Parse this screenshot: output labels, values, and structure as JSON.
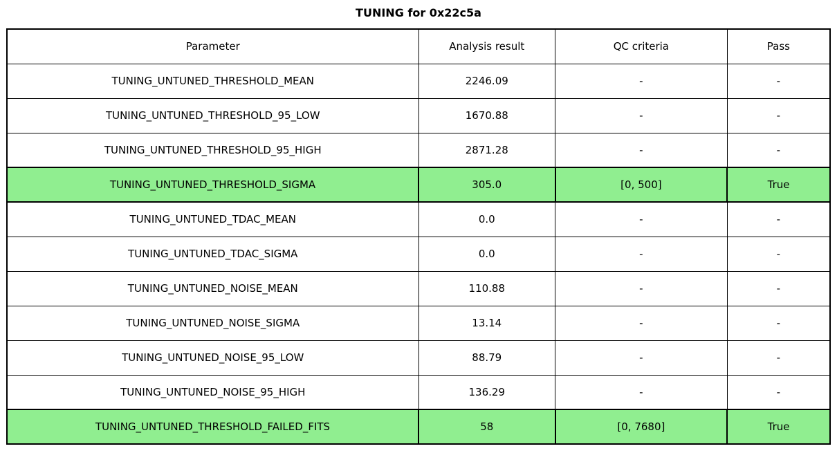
{
  "colors": {
    "highlight_green": "#90ee90",
    "border": "#000000",
    "text": "#000000",
    "background": "#ffffff"
  },
  "chart_data": {
    "type": "table",
    "title": "TUNING for 0x22c5a",
    "columns": [
      "Parameter",
      "Analysis result",
      "QC criteria",
      "Pass"
    ],
    "rows": [
      {
        "parameter": "TUNING_UNTUNED_THRESHOLD_MEAN",
        "analysis_result": "2246.09",
        "qc_criteria": "-",
        "pass": "-",
        "highlight": false
      },
      {
        "parameter": "TUNING_UNTUNED_THRESHOLD_95_LOW",
        "analysis_result": "1670.88",
        "qc_criteria": "-",
        "pass": "-",
        "highlight": false
      },
      {
        "parameter": "TUNING_UNTUNED_THRESHOLD_95_HIGH",
        "analysis_result": "2871.28",
        "qc_criteria": "-",
        "pass": "-",
        "highlight": false
      },
      {
        "parameter": "TUNING_UNTUNED_THRESHOLD_SIGMA",
        "analysis_result": "305.0",
        "qc_criteria": "[0, 500]",
        "pass": "True",
        "highlight": true
      },
      {
        "parameter": "TUNING_UNTUNED_TDAC_MEAN",
        "analysis_result": "0.0",
        "qc_criteria": "-",
        "pass": "-",
        "highlight": false
      },
      {
        "parameter": "TUNING_UNTUNED_TDAC_SIGMA",
        "analysis_result": "0.0",
        "qc_criteria": "-",
        "pass": "-",
        "highlight": false
      },
      {
        "parameter": "TUNING_UNTUNED_NOISE_MEAN",
        "analysis_result": "110.88",
        "qc_criteria": "-",
        "pass": "-",
        "highlight": false
      },
      {
        "parameter": "TUNING_UNTUNED_NOISE_SIGMA",
        "analysis_result": "13.14",
        "qc_criteria": "-",
        "pass": "-",
        "highlight": false
      },
      {
        "parameter": "TUNING_UNTUNED_NOISE_95_LOW",
        "analysis_result": "88.79",
        "qc_criteria": "-",
        "pass": "-",
        "highlight": false
      },
      {
        "parameter": "TUNING_UNTUNED_NOISE_95_HIGH",
        "analysis_result": "136.29",
        "qc_criteria": "-",
        "pass": "-",
        "highlight": false
      },
      {
        "parameter": "TUNING_UNTUNED_THRESHOLD_FAILED_FITS",
        "analysis_result": "58",
        "qc_criteria": "[0, 7680]",
        "pass": "True",
        "highlight": true
      }
    ]
  }
}
